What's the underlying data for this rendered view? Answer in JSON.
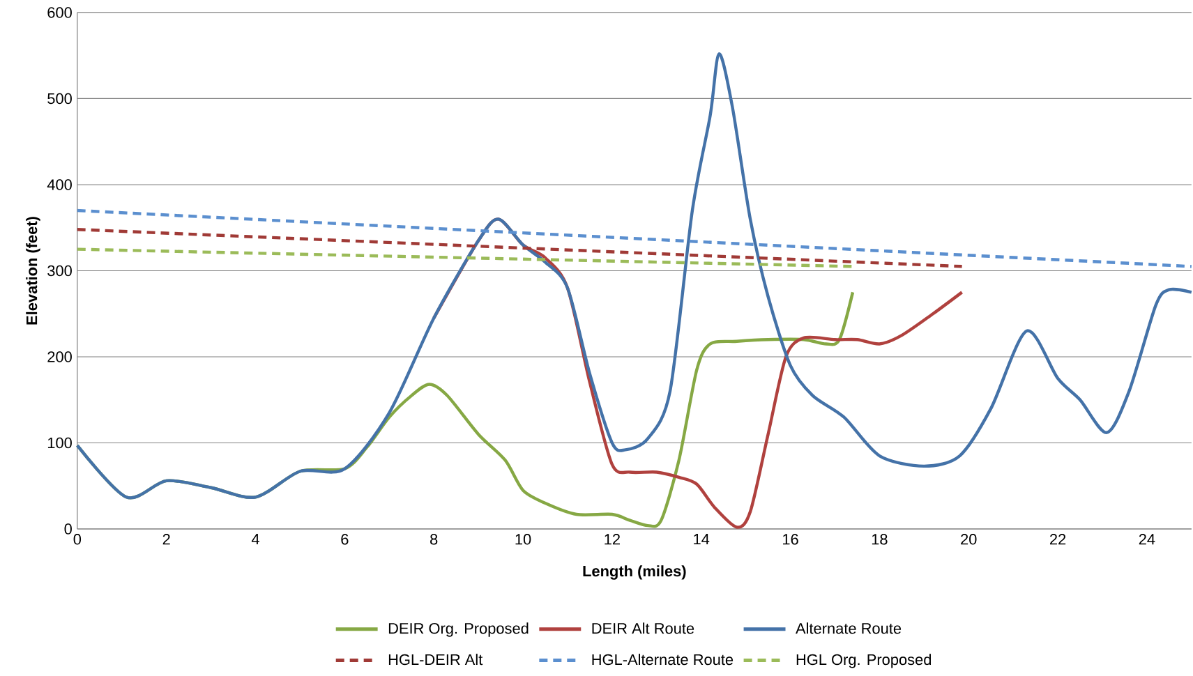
{
  "chart_data": {
    "type": "line",
    "xlabel": "Length (miles)",
    "ylabel": "Elevation (feet)",
    "xlim": [
      0,
      25
    ],
    "xticks": [
      0,
      2,
      4,
      6,
      8,
      10,
      12,
      14,
      16,
      18,
      20,
      22,
      24
    ],
    "ylim": [
      0,
      600
    ],
    "yticks": [
      0,
      100,
      200,
      300,
      400,
      500,
      600
    ],
    "grid": "y",
    "legend": "bottom",
    "marker": "none",
    "series": [
      {
        "name": "DEIR Org. Proposed",
        "color": "#86a844",
        "line_style": "solid",
        "x": [
          0,
          1.1,
          2,
          3,
          4,
          5,
          6,
          6.5,
          7,
          7.5,
          7.9,
          8.3,
          9,
          9.6,
          10,
          10.5,
          11.2,
          12,
          12.4,
          12.8,
          13.1,
          13.5,
          13.9,
          14.2,
          14.8,
          15.5,
          16.3,
          16.8,
          17.1,
          17.4
        ],
        "values": [
          97,
          37,
          56,
          48,
          37,
          67,
          70,
          95,
          130,
          155,
          168,
          155,
          110,
          80,
          45,
          30,
          17,
          17,
          10,
          4,
          10,
          80,
          185,
          215,
          218,
          220,
          220,
          215,
          220,
          275
        ]
      },
      {
        "name": "DEIR Alt Route",
        "color": "#b0413e",
        "line_style": "solid",
        "x": [
          8,
          9,
          9.45,
          10,
          10.5,
          11,
          11.5,
          12,
          12.4,
          13,
          13.5,
          13.9,
          14.3,
          14.8,
          15.1,
          15.5,
          15.9,
          16.3,
          17,
          17.5,
          18,
          18.5,
          19.2,
          19.85
        ],
        "values": [
          245,
          335,
          360,
          330,
          315,
          280,
          170,
          75,
          66,
          66,
          60,
          52,
          25,
          2,
          20,
          110,
          200,
          222,
          220,
          220,
          215,
          225,
          250,
          275
        ]
      },
      {
        "name": "Alternate Route",
        "color": "#4472a8",
        "line_style": "solid",
        "x": [
          0,
          1.1,
          2,
          3,
          4,
          5,
          6,
          7,
          8,
          9,
          9.45,
          10,
          10.5,
          11,
          11.5,
          12,
          12.3,
          12.8,
          13.3,
          13.8,
          14.2,
          14.4,
          14.7,
          15.1,
          15.5,
          16,
          16.5,
          17.2,
          18,
          19,
          19.8,
          20.5,
          21.3,
          22,
          22.5,
          23.1,
          23.6,
          24.2,
          24.5,
          25
        ],
        "values": [
          97,
          37,
          56,
          48,
          37,
          67,
          70,
          135,
          245,
          335,
          360,
          330,
          310,
          280,
          180,
          100,
          92,
          105,
          160,
          370,
          480,
          552,
          490,
          360,
          270,
          190,
          155,
          130,
          85,
          73,
          85,
          140,
          230,
          175,
          150,
          112,
          160,
          260,
          278,
          275
        ]
      },
      {
        "name": "HGL-DEIR Alt",
        "color": "#a03a36",
        "line_style": "dashed",
        "x": [
          0,
          19.85
        ],
        "values": [
          348,
          305
        ]
      },
      {
        "name": "HGL-Alternate Route",
        "color": "#5b8fcf",
        "line_style": "dashed",
        "x": [
          0,
          25
        ],
        "values": [
          370,
          305
        ]
      },
      {
        "name": "HGL Org. Proposed",
        "color": "#9bbb59",
        "line_style": "dashed",
        "x": [
          0,
          17.4
        ],
        "values": [
          325,
          305
        ]
      }
    ]
  }
}
